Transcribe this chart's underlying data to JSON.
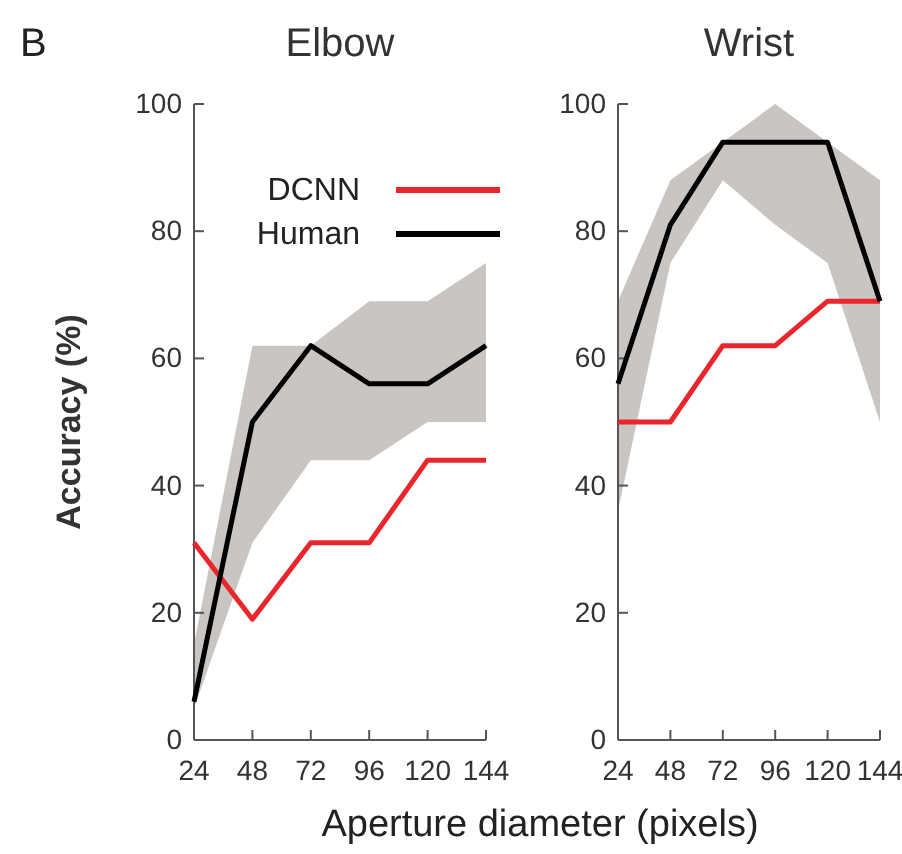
{
  "chart_data": [
    {
      "type": "line",
      "title": "Elbow",
      "xlabel": "Aperture diameter (pixels)",
      "ylabel": "Accuracy (%)",
      "annotations": [
        "B"
      ],
      "x": [
        24,
        48,
        72,
        96,
        120,
        144
      ],
      "xlim": [
        24,
        144
      ],
      "xticks": [
        24,
        48,
        72,
        96,
        120,
        144
      ],
      "ylim": [
        0,
        100
      ],
      "yticks": [
        0,
        20,
        40,
        60,
        80,
        100
      ],
      "legend": "top",
      "series": [
        {
          "name": "DCNN",
          "color": "#e8262b",
          "values": [
            31,
            19,
            31,
            31,
            44,
            44
          ]
        },
        {
          "name": "Human",
          "color": "#000000",
          "values": [
            6,
            50,
            62,
            56,
            56,
            62
          ],
          "lower": [
            5,
            31,
            44,
            44,
            50,
            50
          ],
          "upper": [
            15,
            62,
            62,
            69,
            69,
            75
          ]
        }
      ]
    },
    {
      "type": "line",
      "title": "Wrist",
      "x": [
        24,
        48,
        72,
        96,
        120,
        144
      ],
      "xlim": [
        24,
        144
      ],
      "xticks": [
        24,
        48,
        72,
        96,
        120,
        144
      ],
      "ylim": [
        0,
        100
      ],
      "yticks": [
        0,
        20,
        40,
        60,
        80,
        100
      ],
      "series": [
        {
          "color": "#e8262b",
          "values": [
            50,
            50,
            62,
            62,
            69,
            69
          ]
        },
        {
          "color": "#000000",
          "values": [
            56,
            81,
            94,
            94,
            94,
            69
          ],
          "lower": [
            36,
            75,
            88,
            81,
            75,
            50
          ],
          "upper": [
            69,
            88,
            94,
            100,
            94,
            88
          ]
        }
      ]
    }
  ]
}
